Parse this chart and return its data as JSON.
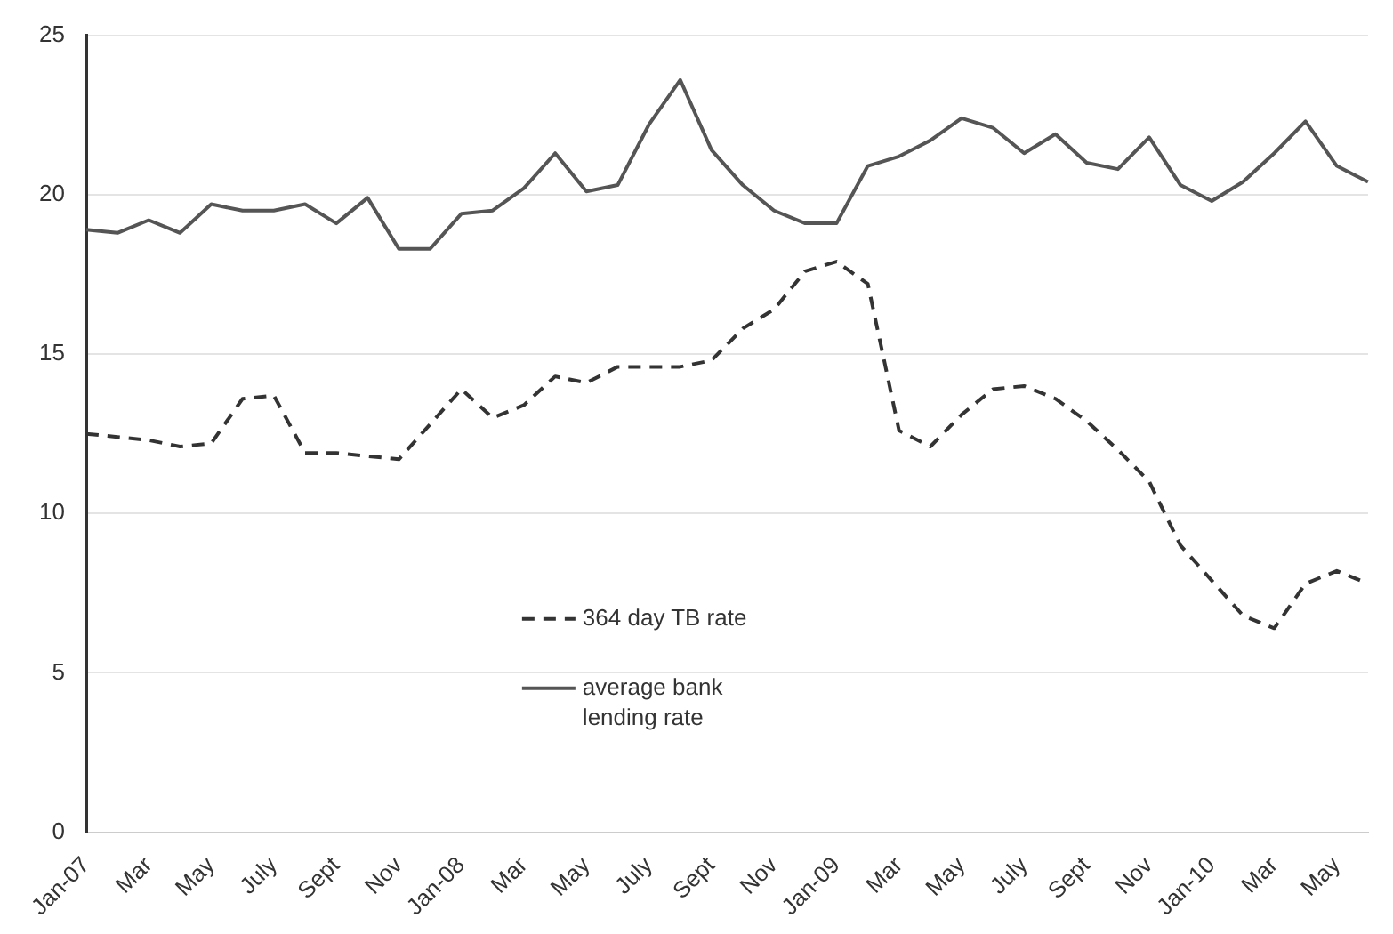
{
  "chart_data": {
    "type": "line",
    "categories": [
      "Jan-07",
      null,
      "Mar",
      null,
      "May",
      null,
      "July",
      null,
      "Sept",
      null,
      "Nov",
      null,
      "Jan-08",
      null,
      "Mar",
      null,
      "May",
      null,
      "July",
      null,
      "Sept",
      null,
      "Nov",
      null,
      "Jan-09",
      null,
      "Mar",
      null,
      "May",
      null,
      "July",
      null,
      "Sept",
      null,
      "Nov",
      null,
      "Jan-10",
      null,
      "Mar",
      null,
      "May",
      null
    ],
    "series": [
      {
        "name": "364 day TB rate",
        "color": "#333333",
        "line_style": "dashed",
        "values": [
          12.5,
          12.4,
          12.3,
          12.1,
          12.2,
          13.6,
          13.7,
          11.9,
          11.9,
          11.8,
          11.7,
          12.8,
          13.9,
          13,
          13.4,
          14.3,
          14.1,
          14.6,
          14.6,
          14.6,
          14.8,
          15.8,
          16.4,
          17.6,
          17.9,
          17.2,
          12.6,
          12.1,
          13.1,
          13.9,
          14,
          13.6,
          12.9,
          12,
          11,
          9,
          7.9,
          6.8,
          6.4,
          7.8,
          8.2,
          7.8
        ]
      },
      {
        "name": "average bank lending rate",
        "color": "#555555",
        "line_style": "solid",
        "values": [
          18.9,
          18.8,
          19.2,
          18.8,
          19.7,
          19.5,
          19.5,
          19.7,
          19.1,
          19.9,
          18.3,
          18.3,
          19.4,
          19.5,
          20.2,
          21.3,
          20.1,
          20.3,
          22.2,
          23.6,
          21.4,
          20.3,
          19.5,
          19.1,
          19.1,
          20.9,
          21.2,
          21.7,
          22.4,
          22.1,
          21.3,
          21.9,
          21,
          20.8,
          21.8,
          20.3,
          19.8,
          20.4,
          21.3,
          22.3,
          20.9,
          20.4
        ]
      }
    ],
    "ylim": [
      0,
      25
    ],
    "yticks": [
      0,
      5,
      10,
      15,
      20,
      25
    ],
    "grid": "y",
    "legend": "bottom",
    "marker": "none"
  }
}
